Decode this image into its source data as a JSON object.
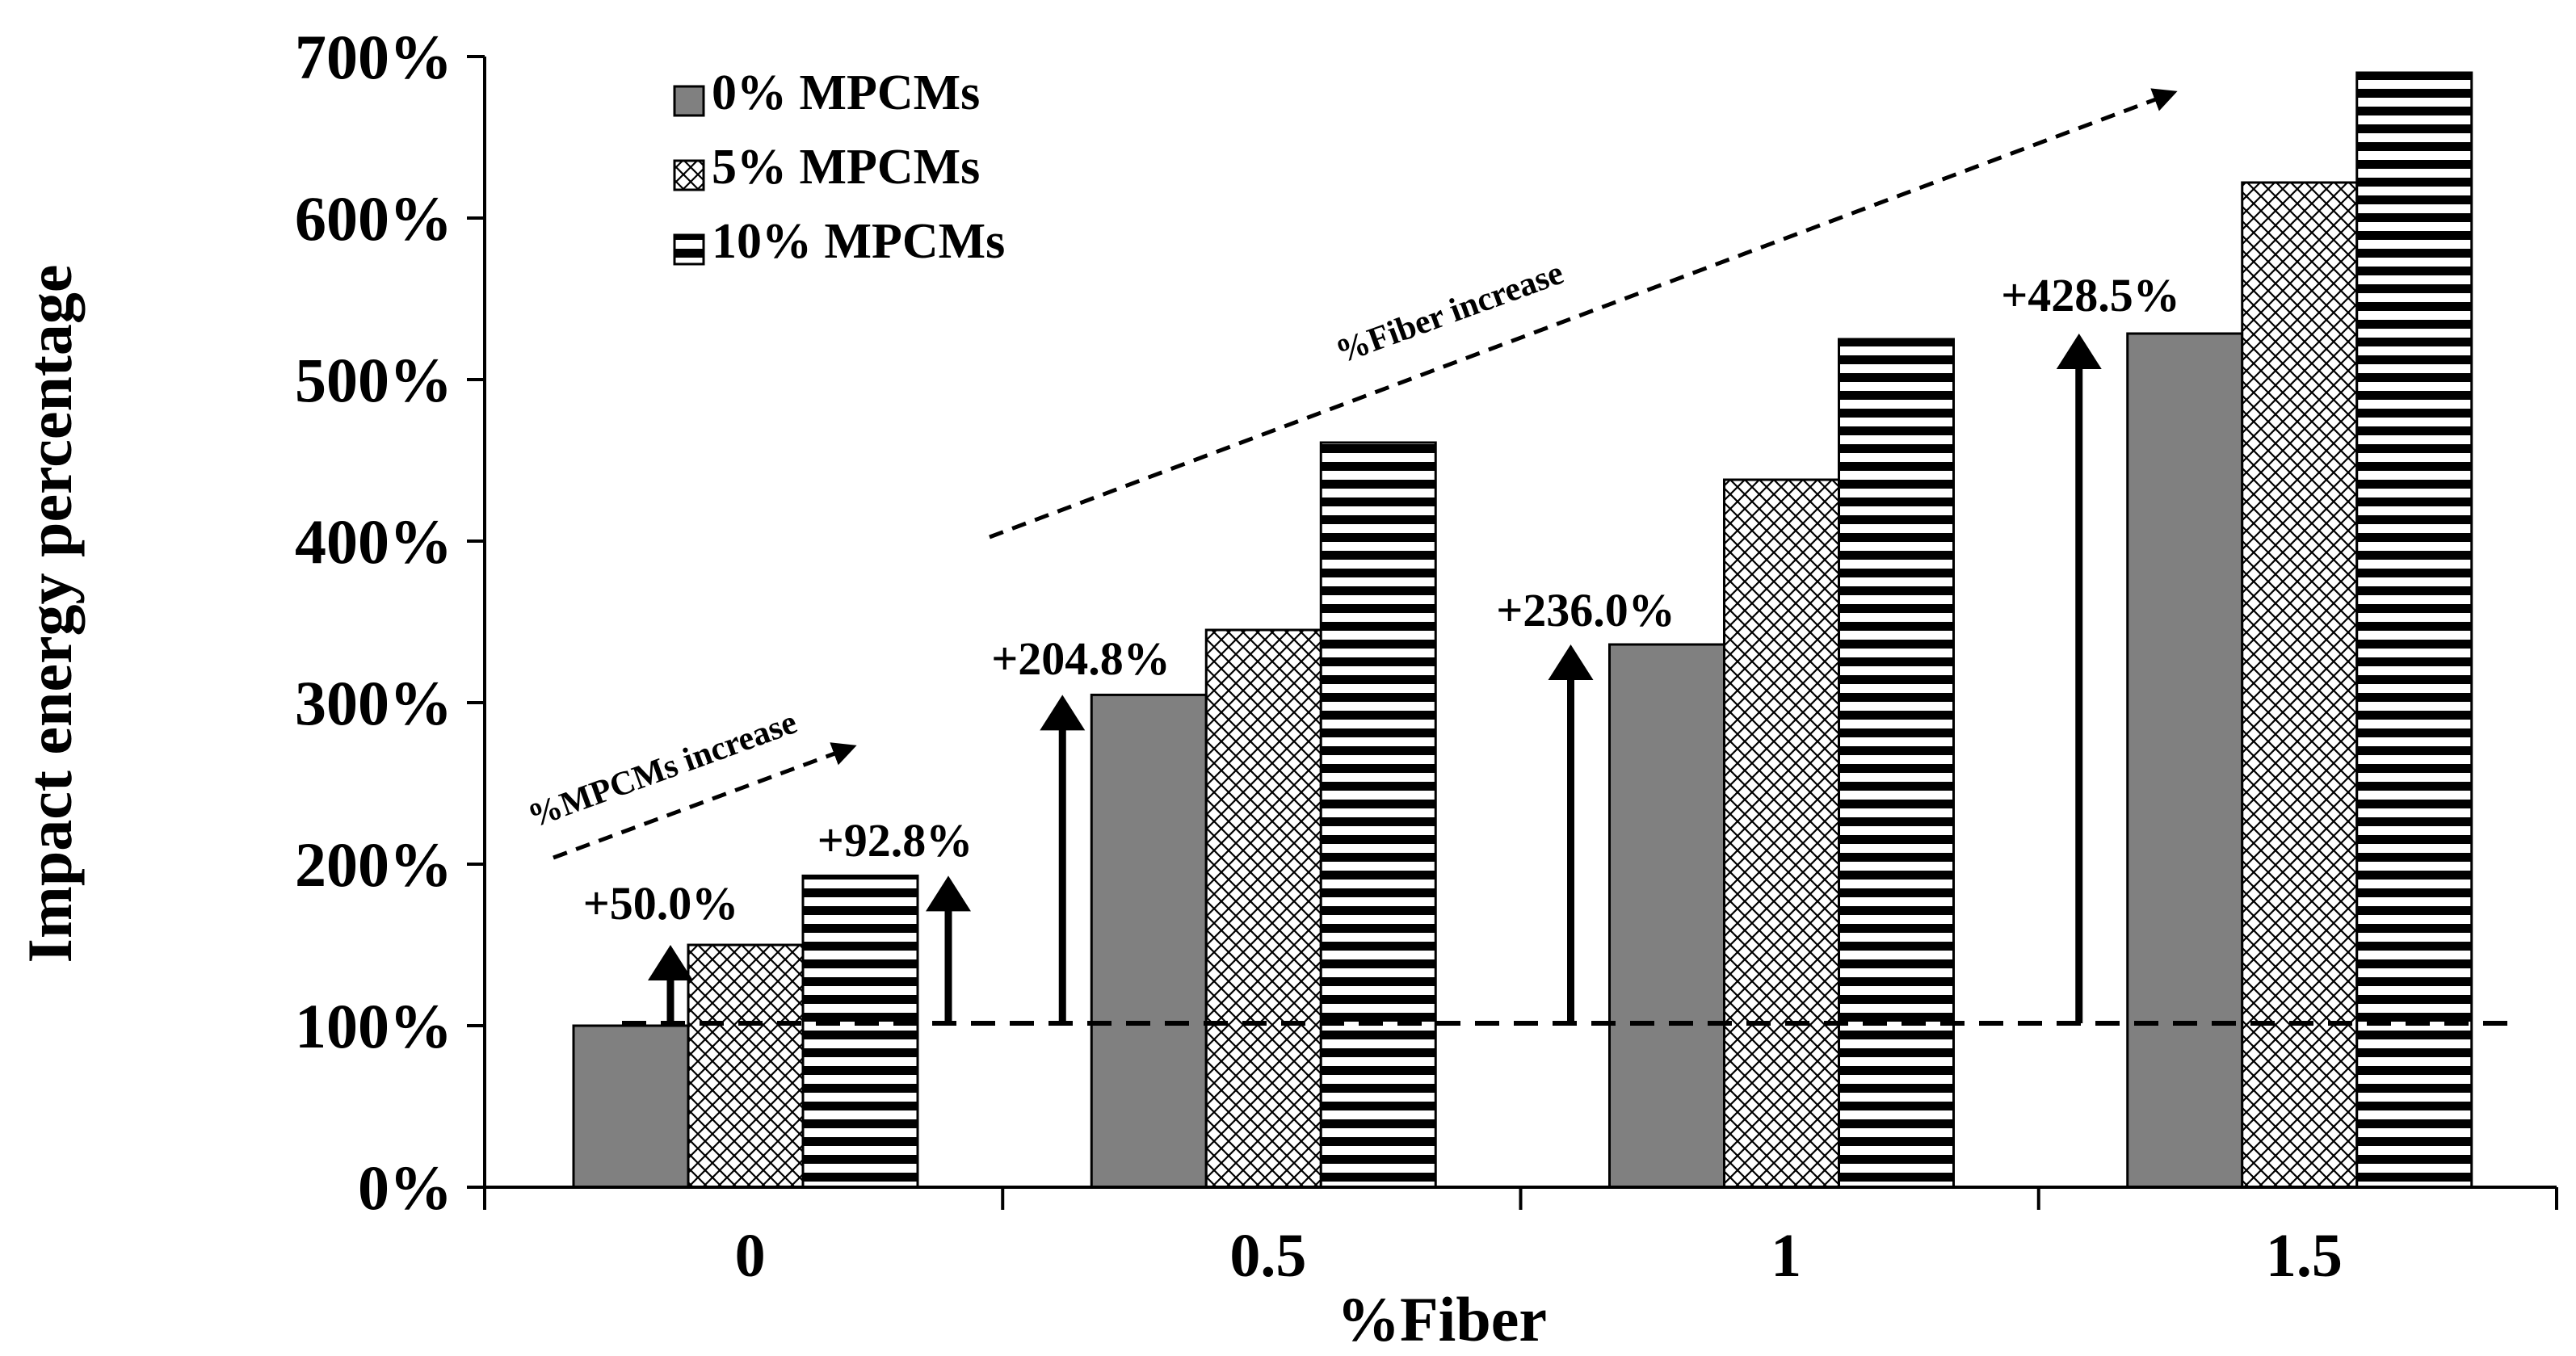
{
  "chart_data": {
    "type": "bar",
    "title": "",
    "xlabel": "%Fiber",
    "ylabel": "Impact energy percentage",
    "categories": [
      "0",
      "0.5",
      "1",
      "1.5"
    ],
    "series": [
      {
        "name": "0% MPCMs",
        "values": [
          100,
          304.8,
          336.0,
          528.5
        ],
        "color": "#808080",
        "pattern": "solid"
      },
      {
        "name": "5% MPCMs",
        "values": [
          150,
          345,
          438,
          622
        ],
        "color": "#ffffff",
        "pattern": "crosshatch"
      },
      {
        "name": "10% MPCMs",
        "values": [
          192.8,
          461,
          525,
          690
        ],
        "color": "#ffffff",
        "pattern": "horizontal-stripes"
      }
    ],
    "ylim": [
      0,
      700
    ],
    "yticks": [
      "0%",
      "100%",
      "200%",
      "300%",
      "400%",
      "500%",
      "600%",
      "700%"
    ],
    "ytick_values": [
      0,
      100,
      200,
      300,
      400,
      500,
      600,
      700
    ],
    "grid": false,
    "legend_position": "top-left",
    "reference_line": {
      "value": 100,
      "style": "dashed"
    },
    "annotations": [
      {
        "text": "+50.0%"
      },
      {
        "text": "+92.8%"
      },
      {
        "text": "+204.8%"
      },
      {
        "text": "+236.0%"
      },
      {
        "text": "+428.5%"
      }
    ],
    "trend_labels": [
      "%MPCMs increase",
      "%Fiber increase"
    ]
  }
}
